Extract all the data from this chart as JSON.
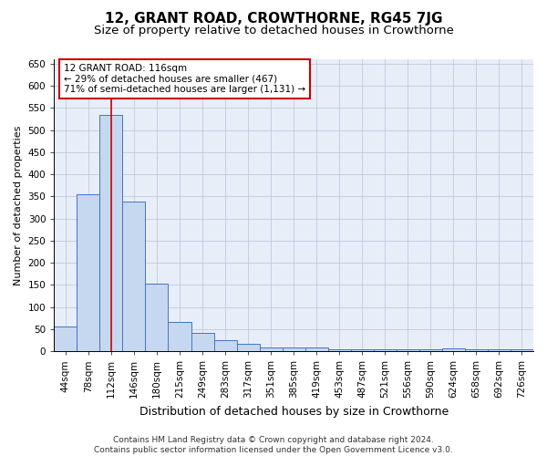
{
  "title": "12, GRANT ROAD, CROWTHORNE, RG45 7JG",
  "subtitle": "Size of property relative to detached houses in Crowthorne",
  "xlabel": "Distribution of detached houses by size in Crowthorne",
  "ylabel": "Number of detached properties",
  "categories": [
    "44sqm",
    "78sqm",
    "112sqm",
    "146sqm",
    "180sqm",
    "215sqm",
    "249sqm",
    "283sqm",
    "317sqm",
    "351sqm",
    "385sqm",
    "419sqm",
    "453sqm",
    "487sqm",
    "521sqm",
    "556sqm",
    "590sqm",
    "624sqm",
    "658sqm",
    "692sqm",
    "726sqm"
  ],
  "values": [
    55,
    355,
    535,
    338,
    153,
    65,
    42,
    24,
    16,
    8,
    8,
    8,
    5,
    5,
    5,
    5,
    4,
    7,
    4,
    4,
    5
  ],
  "bar_color": "#c5d8f0",
  "bar_edge_color": "#4472c4",
  "grid_color": "#c0c8e0",
  "background_color": "#e8eef8",
  "vline_x": 2,
  "vline_color": "#cc0000",
  "annotation_line1": "12 GRANT ROAD: 116sqm",
  "annotation_line2": "← 29% of detached houses are smaller (467)",
  "annotation_line3": "71% of semi-detached houses are larger (1,131) →",
  "annotation_box_color": "#ffffff",
  "annotation_box_edge": "#cc0000",
  "ylim": [
    0,
    660
  ],
  "yticks": [
    0,
    50,
    100,
    150,
    200,
    250,
    300,
    350,
    400,
    450,
    500,
    550,
    600,
    650
  ],
  "footer_line1": "Contains HM Land Registry data © Crown copyright and database right 2024.",
  "footer_line2": "Contains public sector information licensed under the Open Government Licence v3.0.",
  "title_fontsize": 11,
  "subtitle_fontsize": 9.5,
  "xlabel_fontsize": 9,
  "ylabel_fontsize": 8,
  "tick_fontsize": 7.5,
  "annotation_fontsize": 7.5,
  "footer_fontsize": 6.5
}
